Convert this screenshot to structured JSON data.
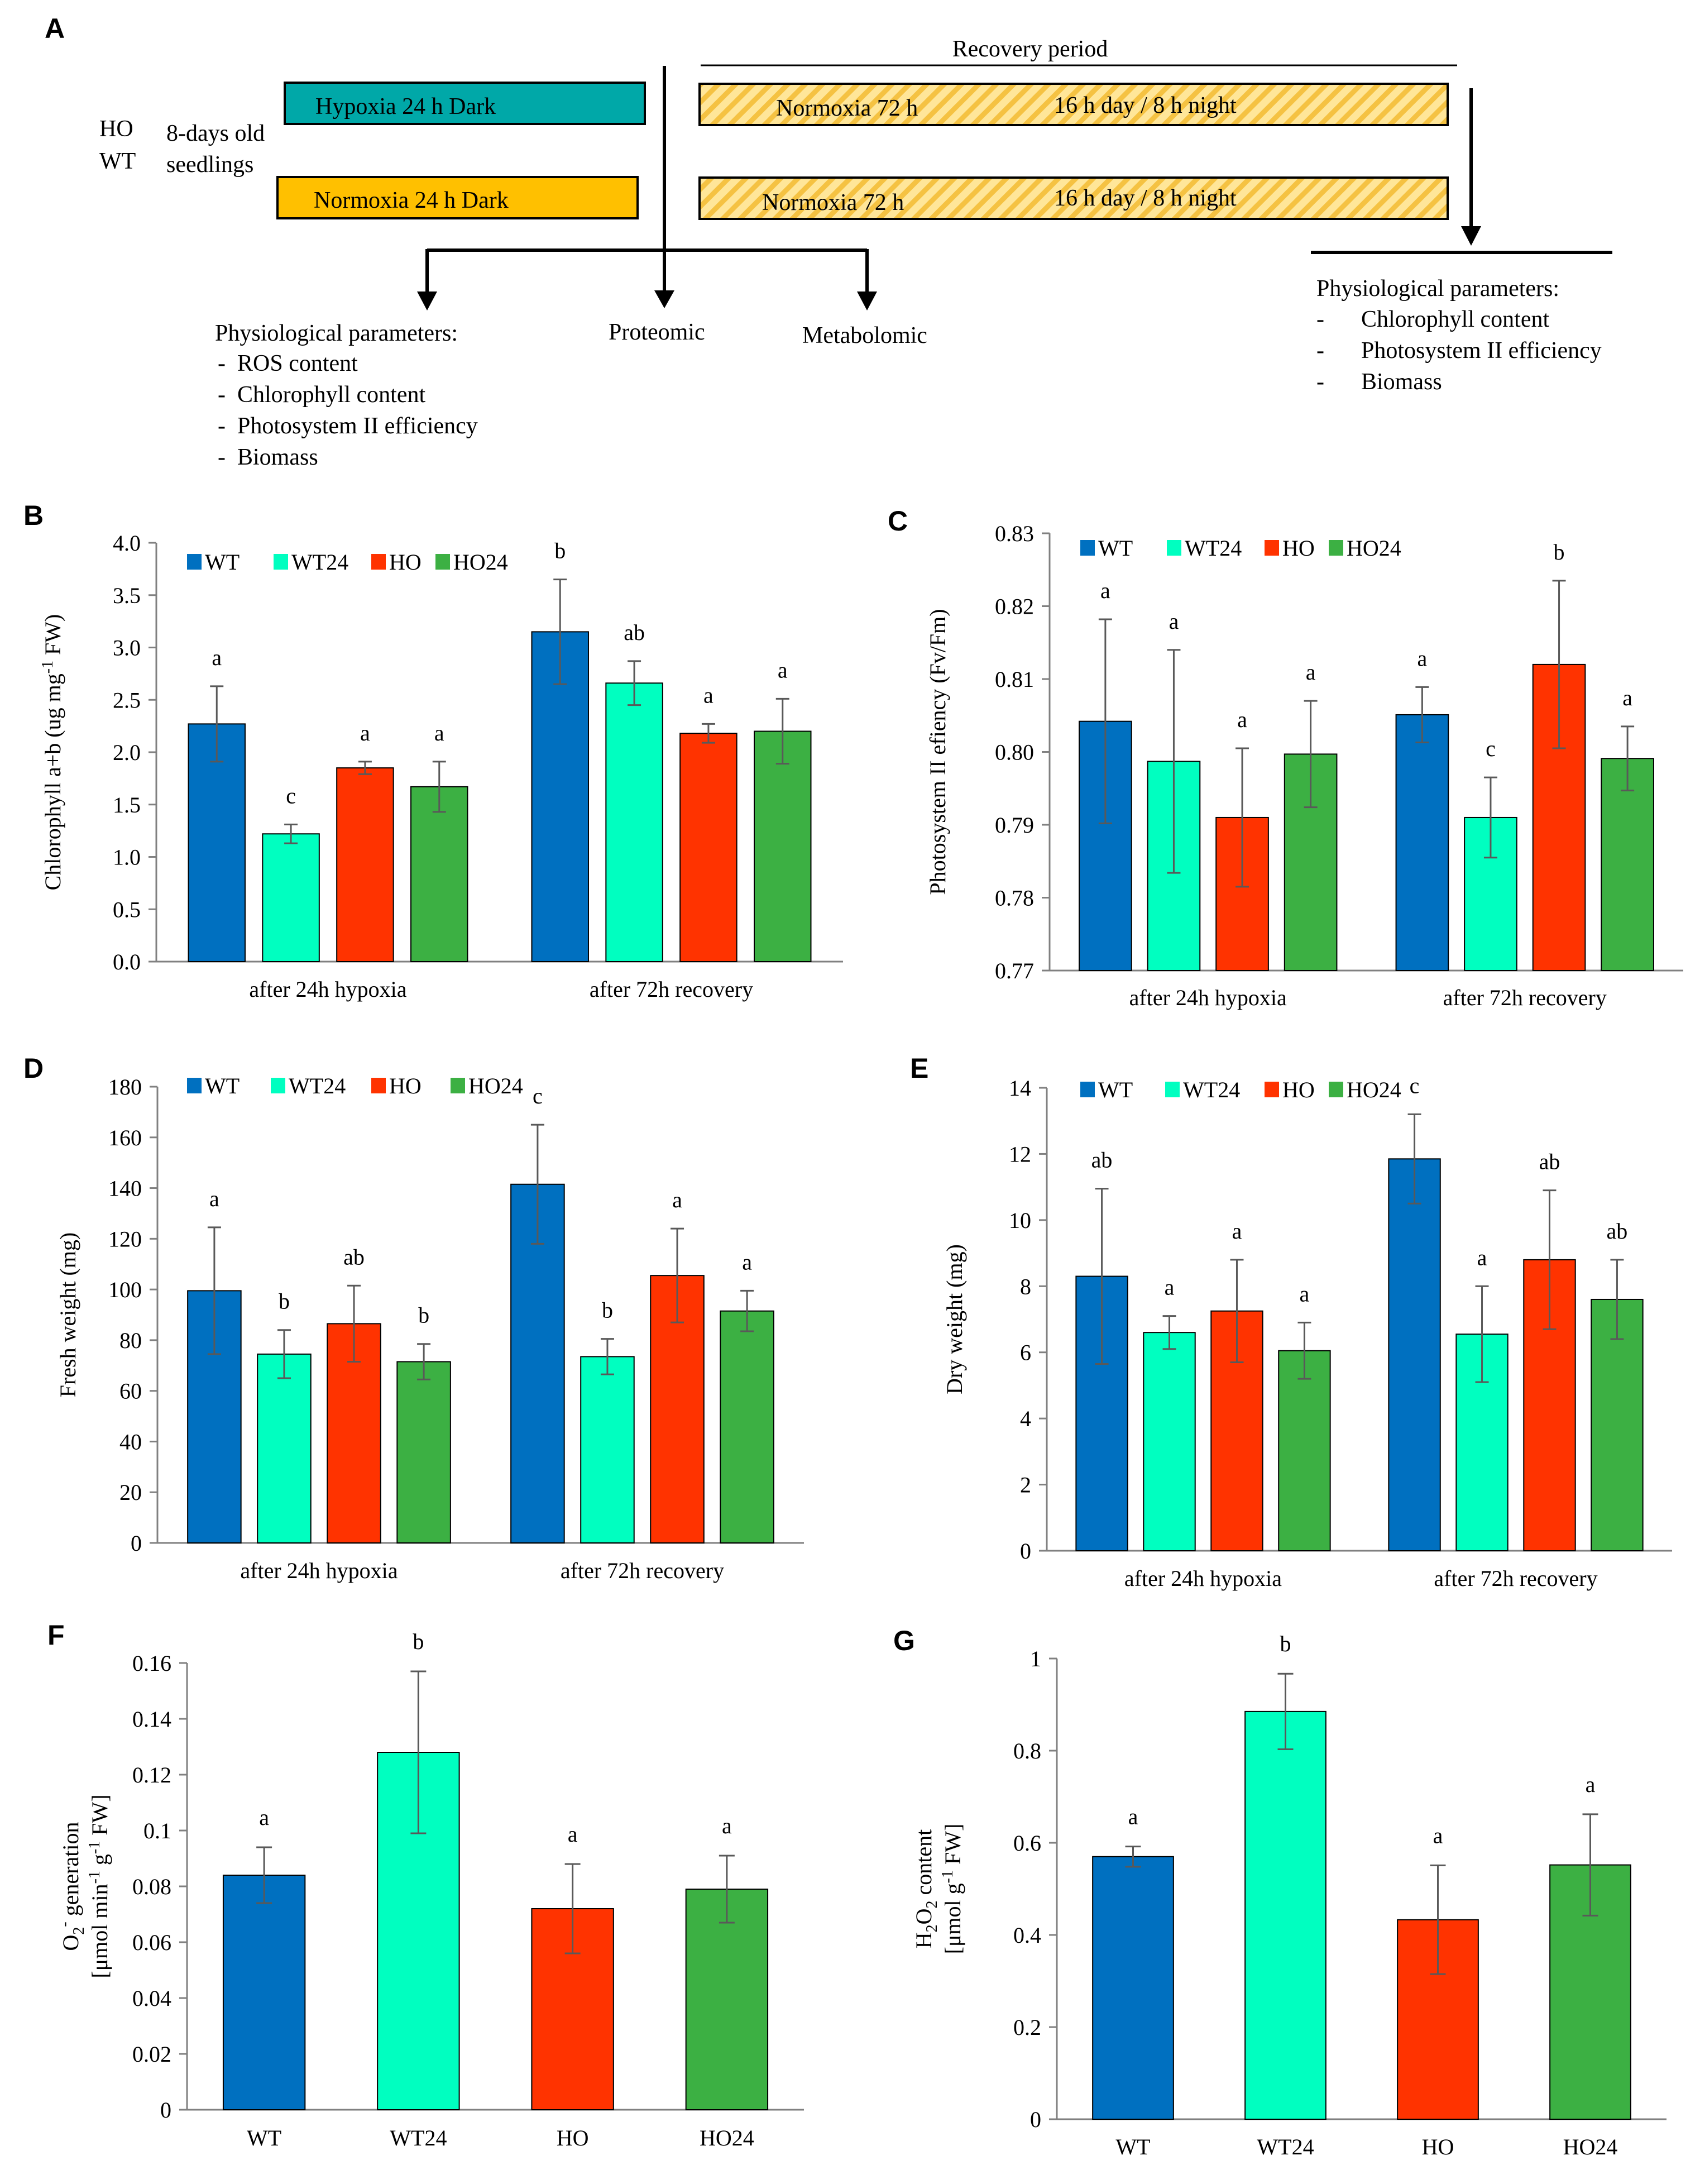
{
  "colors": {
    "WT": "#0070C0",
    "WT24": "#00FFC0",
    "HO": "#FF3300",
    "HO24": "#3CB043",
    "hypoxia_box": "#00A8A8",
    "normoxia_box": "#FFC000",
    "recovery_box": "#FFE699",
    "recovery_stripe": "#F5C242",
    "error_bar": "#595959",
    "axis": "#808080"
  },
  "panel_a": {
    "letter": "A",
    "genotypes": [
      "HO",
      "WT"
    ],
    "seedlings": [
      "8-days old",
      "seedlings"
    ],
    "hypoxia_label": "Hypoxia  24 h Dark",
    "normoxia_label": "Normoxia  24 h Dark",
    "recovery_title": "Recovery period",
    "recovery_rows": [
      {
        "left": "Normoxia  72 h",
        "right": "16 h day / 8 h night"
      },
      {
        "left": "Normoxia  72 h",
        "right": "16 h day / 8 h night"
      }
    ],
    "outputs": {
      "physio_title": "Physiological parameters:",
      "physio_items": [
        "ROS content",
        "Chlorophyll content",
        "Photosystem II efficiency",
        "Biomass"
      ],
      "proteomic": "Proteomic",
      "metabolomic": "Metabolomic"
    },
    "recovery_outputs": {
      "title": "Physiological parameters:",
      "items": [
        "Chlorophyll content",
        "Photosystem II efficiency",
        "Biomass"
      ]
    }
  },
  "chart_data": [
    {
      "panel": "B",
      "type": "bar",
      "ylabel": "Chlorophyll a+b (ug mg",
      "ylabel_sup": "-1",
      "ylabel_tail": " FW)",
      "ylim": [
        0,
        4.0
      ],
      "ytick_labels": [
        "0.0",
        "0.5",
        "1.0",
        "1.5",
        "2.0",
        "2.5",
        "3.0",
        "3.5",
        "4.0"
      ],
      "categories": [
        "after 24h hypoxia",
        "after 72h recovery"
      ],
      "legend": [
        "WT",
        "WT24",
        "HO",
        "HO24"
      ],
      "series": [
        {
          "name": "WT",
          "values": [
            2.27,
            3.15
          ],
          "errors": [
            0.36,
            0.5
          ],
          "letters": [
            "a",
            "b"
          ]
        },
        {
          "name": "WT24",
          "values": [
            1.22,
            2.66
          ],
          "errors": [
            0.09,
            0.21
          ],
          "letters": [
            "c",
            "ab"
          ]
        },
        {
          "name": "HO",
          "values": [
            1.85,
            2.18
          ],
          "errors": [
            0.06,
            0.09
          ],
          "letters": [
            "a",
            "a"
          ]
        },
        {
          "name": "HO24",
          "values": [
            1.67,
            2.2
          ],
          "errors": [
            0.24,
            0.31
          ],
          "letters": [
            "a",
            "a"
          ]
        }
      ]
    },
    {
      "panel": "C",
      "type": "bar",
      "ylabel": "Photosystem II efiency (Fv/Fm)",
      "ylim": [
        0.77,
        0.83
      ],
      "ytick_labels": [
        "0.77",
        "0.78",
        "0.79",
        "0.80",
        "0.81",
        "0.82",
        "0.83"
      ],
      "categories": [
        "after 24h hypoxia",
        "after 72h recovery"
      ],
      "legend": [
        "WT",
        "WT24",
        "HO",
        "HO24"
      ],
      "series": [
        {
          "name": "WT",
          "values": [
            0.8042,
            0.8051
          ],
          "errors": [
            0.014,
            0.0038
          ],
          "letters": [
            "a",
            "a"
          ]
        },
        {
          "name": "WT24",
          "values": [
            0.7987,
            0.791
          ],
          "errors": [
            0.0153,
            0.0055
          ],
          "letters": [
            "a",
            "c"
          ]
        },
        {
          "name": "HO",
          "values": [
            0.791,
            0.812
          ],
          "errors": [
            0.0095,
            0.0115
          ],
          "letters": [
            "a",
            "b"
          ]
        },
        {
          "name": "HO24",
          "values": [
            0.7997,
            0.7991
          ],
          "errors": [
            0.0073,
            0.0044
          ],
          "letters": [
            "a",
            "a"
          ]
        }
      ]
    },
    {
      "panel": "D",
      "type": "bar",
      "ylabel": "Fresh weight (mg)",
      "ylim": [
        0,
        180
      ],
      "ytick_labels": [
        "0",
        "20",
        "40",
        "60",
        "80",
        "100",
        "120",
        "140",
        "160",
        "180"
      ],
      "categories": [
        "after 24h hypoxia",
        "after 72h recovery"
      ],
      "legend": [
        "WT",
        "WT24",
        "HO",
        "HO24"
      ],
      "series": [
        {
          "name": "WT",
          "values": [
            99.5,
            141.5
          ],
          "errors": [
            25.0,
            23.5
          ],
          "letters": [
            "a",
            "c"
          ]
        },
        {
          "name": "WT24",
          "values": [
            74.5,
            73.5
          ],
          "errors": [
            9.5,
            7.0
          ],
          "letters": [
            "b",
            "b"
          ]
        },
        {
          "name": "HO",
          "values": [
            86.5,
            105.5
          ],
          "errors": [
            15.0,
            18.5
          ],
          "letters": [
            "ab",
            "a"
          ]
        },
        {
          "name": "HO24",
          "values": [
            71.5,
            91.5
          ],
          "errors": [
            7.0,
            8.0
          ],
          "letters": [
            "b",
            "a"
          ]
        }
      ]
    },
    {
      "panel": "E",
      "type": "bar",
      "ylabel": "Dry weight (mg)",
      "ylim": [
        0,
        14
      ],
      "ytick_labels": [
        "0",
        "2",
        "4",
        "6",
        "8",
        "10",
        "12",
        "14"
      ],
      "categories": [
        "after 24h hypoxia",
        "after 72h recovery"
      ],
      "legend": [
        "WT",
        "WT24",
        "HO",
        "HO24"
      ],
      "series": [
        {
          "name": "WT",
          "values": [
            8.3,
            11.85
          ],
          "errors": [
            2.65,
            1.35
          ],
          "letters": [
            "ab",
            "c"
          ]
        },
        {
          "name": "WT24",
          "values": [
            6.6,
            6.55
          ],
          "errors": [
            0.5,
            1.45
          ],
          "letters": [
            "a",
            "a"
          ]
        },
        {
          "name": "HO",
          "values": [
            7.25,
            8.8
          ],
          "errors": [
            1.55,
            2.1
          ],
          "letters": [
            "a",
            "ab"
          ]
        },
        {
          "name": "HO24",
          "values": [
            6.05,
            7.6
          ],
          "errors": [
            0.85,
            1.2
          ],
          "letters": [
            "a",
            "ab"
          ]
        }
      ]
    },
    {
      "panel": "F",
      "type": "bar",
      "ylabel_lines": [
        "O",
        "2",
        "-",
        " generation"
      ],
      "ylabel2": "[μmol min",
      "ylabel2_sup1": "-1",
      "ylabel2_mid": " g",
      "ylabel2_sup2": "-1",
      "ylabel2_tail": " FW]",
      "ylim": [
        0,
        0.16
      ],
      "ytick_labels": [
        "0",
        "0.02",
        "0.04",
        "0.06",
        "0.08",
        "0.1",
        "0.12",
        "0.14",
        "0.16"
      ],
      "categories": [
        "WT",
        "WT24",
        "HO",
        "HO24"
      ],
      "values": [
        0.084,
        0.128,
        0.072,
        0.079
      ],
      "errors": [
        0.01,
        0.029,
        0.016,
        0.012
      ],
      "letters": [
        "a",
        "b",
        "a",
        "a"
      ]
    },
    {
      "panel": "G",
      "type": "bar",
      "ylabel_lines": [
        "H",
        "2",
        "O",
        "2",
        " content"
      ],
      "ylabel2": "[μmol g",
      "ylabel2_sup": "-1",
      "ylabel2_tail": " FW]",
      "ylim": [
        0,
        1
      ],
      "ytick_labels": [
        "0",
        "0.2",
        "0.4",
        "0.6",
        "0.8",
        "1"
      ],
      "categories": [
        "WT",
        "WT24",
        "HO",
        "HO24"
      ],
      "values": [
        0.57,
        0.885,
        0.433,
        0.552
      ],
      "errors": [
        0.022,
        0.082,
        0.118,
        0.11
      ],
      "letters": [
        "a",
        "b",
        "a",
        "a"
      ]
    }
  ]
}
